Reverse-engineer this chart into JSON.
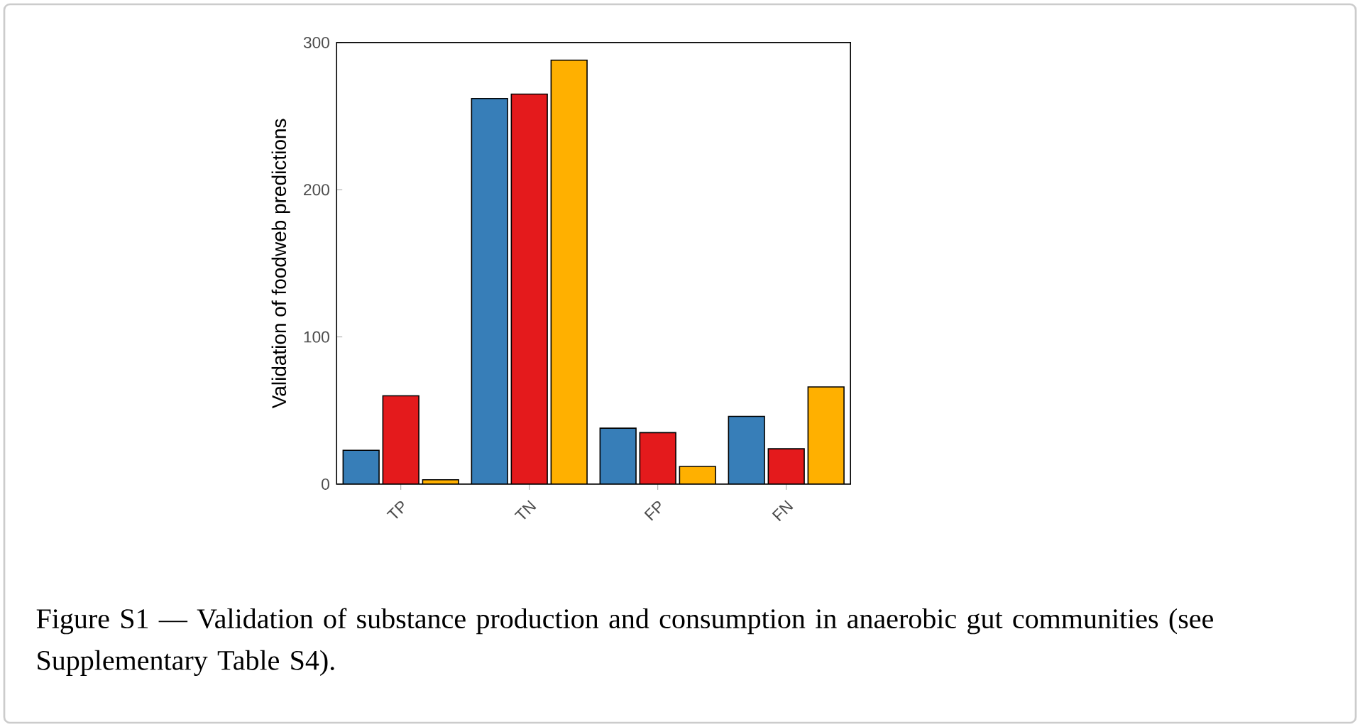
{
  "chart_data": {
    "type": "bar",
    "ylabel": "Validation of foodweb predictions",
    "categories": [
      "TP",
      "TN",
      "FP",
      "FN"
    ],
    "series": [
      {
        "color": "#377eb8",
        "values": [
          23,
          262,
          38,
          46
        ]
      },
      {
        "color": "#e41a1c",
        "values": [
          60,
          265,
          35,
          24
        ]
      },
      {
        "color": "#ffb000",
        "values": [
          3,
          288,
          12,
          66
        ]
      }
    ],
    "ylim": [
      0,
      300
    ],
    "yticks": [
      0,
      100,
      200,
      300
    ],
    "annotations": [
      "Figure S1 — Validation of substance production and consumption in anaerobic gut communities (see Supplementary Table S4)."
    ]
  }
}
